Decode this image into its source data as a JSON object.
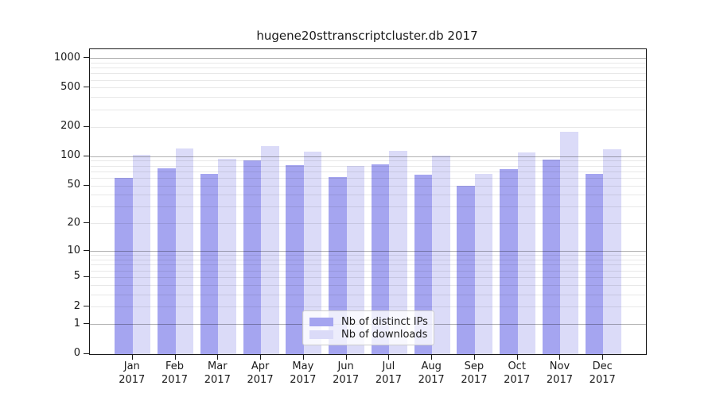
{
  "title": "hugene20sttranscriptcluster.db 2017",
  "chart_data": {
    "type": "bar",
    "title": "hugene20sttranscriptcluster.db 2017",
    "categories": [
      "Jan",
      "Feb",
      "Mar",
      "Apr",
      "May",
      "Jun",
      "Jul",
      "Aug",
      "Sep",
      "Oct",
      "Nov",
      "Dec"
    ],
    "x_sublabel": "2017",
    "series": [
      {
        "name": "Nb of distinct IPs",
        "color": "#a5a5f0",
        "values": [
          61,
          76,
          66,
          91,
          82,
          62,
          84,
          65,
          50,
          75,
          93,
          66
        ]
      },
      {
        "name": "Nb of downloads",
        "color": "#dbdbf8",
        "values": [
          105,
          120,
          95,
          129,
          113,
          80,
          115,
          102,
          66,
          111,
          180,
          118
        ]
      }
    ],
    "yscale": "log10(1+x)",
    "yticks": [
      0,
      1,
      2,
      5,
      10,
      20,
      50,
      100,
      200,
      500,
      1000
    ],
    "minor_gridlines": [
      3,
      4,
      6,
      7,
      8,
      9,
      30,
      40,
      60,
      70,
      80,
      90,
      300,
      400,
      600,
      700,
      800,
      900
    ],
    "ylim": [
      0,
      1240
    ],
    "xlabel": "",
    "ylabel": "",
    "grid": true,
    "legend_position": "bottom-center",
    "colors": {
      "major_grid": "rgba(0,0,0,0.30)",
      "minor_grid": "rgba(0,0,0,0.09)",
      "spine": "#1a1a1a",
      "background": "#ffffff"
    }
  }
}
